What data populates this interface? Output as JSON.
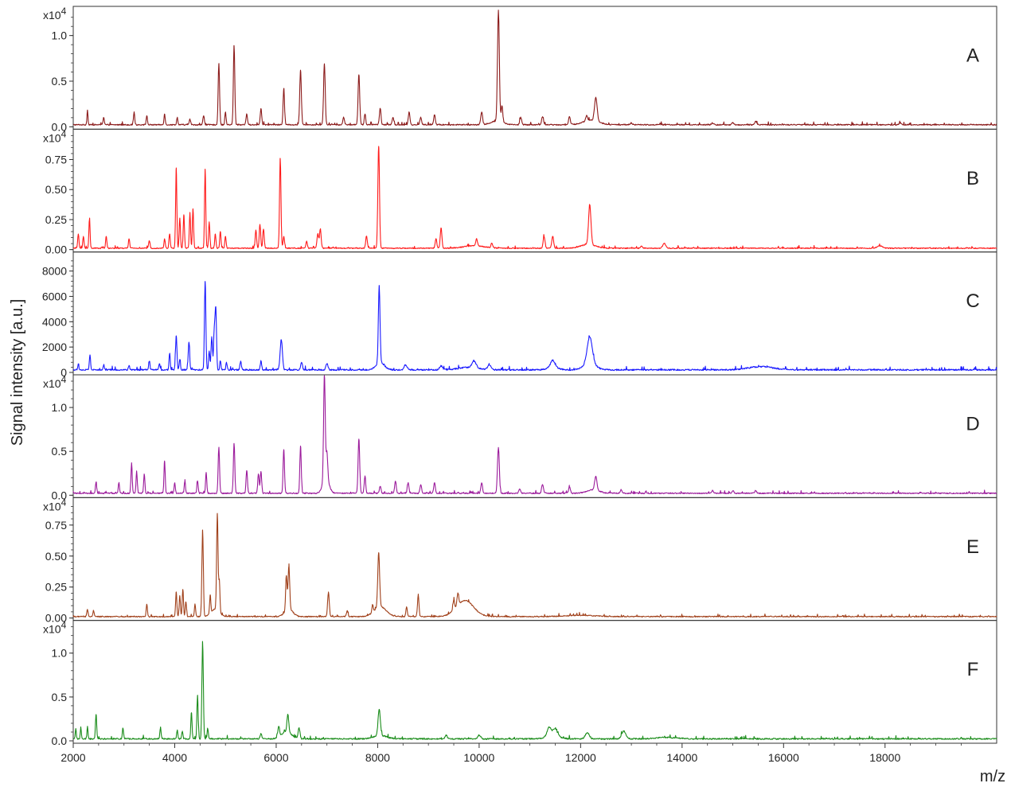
{
  "chart_data": {
    "type": "line",
    "ylabel": "Signal intensity [a.u.]",
    "xlabel": "m/z",
    "xlim": [
      2000,
      20200
    ],
    "x_ticks": [
      2000,
      4000,
      6000,
      8000,
      10000,
      12000,
      14000,
      16000,
      18000
    ],
    "x_tick_labels": [
      "2000",
      "4000",
      "6000",
      "8000",
      "10000",
      "12000",
      "14000",
      "16000",
      "18000"
    ],
    "grid": false,
    "panels": [
      {
        "label": "A",
        "color": "#8b1a1a",
        "exponent_label": "x10",
        "exponent_sup": "4",
        "ylim": [
          0,
          1.25
        ],
        "y_ticks": [
          0,
          0.5,
          1.0
        ],
        "y_tick_labels": [
          "0.0",
          "0.5",
          "1.0"
        ],
        "baseline": 0.02,
        "noise": 0.012,
        "peaks": [
          [
            2280,
            0.16,
            10
          ],
          [
            2600,
            0.08,
            12
          ],
          [
            3200,
            0.14,
            12
          ],
          [
            3450,
            0.1,
            12
          ],
          [
            3800,
            0.12,
            12
          ],
          [
            4050,
            0.08,
            12
          ],
          [
            4300,
            0.06,
            14
          ],
          [
            4570,
            0.1,
            14
          ],
          [
            4870,
            0.67,
            14
          ],
          [
            5000,
            0.14,
            12
          ],
          [
            5170,
            0.87,
            14
          ],
          [
            5420,
            0.12,
            14
          ],
          [
            5700,
            0.18,
            14
          ],
          [
            6150,
            0.4,
            14
          ],
          [
            6480,
            0.6,
            16
          ],
          [
            6950,
            0.67,
            16
          ],
          [
            7330,
            0.08,
            16
          ],
          [
            7630,
            0.55,
            16
          ],
          [
            7750,
            0.12,
            14
          ],
          [
            8050,
            0.18,
            16
          ],
          [
            8300,
            0.08,
            16
          ],
          [
            8620,
            0.14,
            16
          ],
          [
            8850,
            0.08,
            16
          ],
          [
            9120,
            0.11,
            16
          ],
          [
            10050,
            0.14,
            18
          ],
          [
            10380,
            1.22,
            18
          ],
          [
            10450,
            0.18,
            16
          ],
          [
            10820,
            0.08,
            18
          ],
          [
            11250,
            0.09,
            18
          ],
          [
            11780,
            0.09,
            18
          ],
          [
            12120,
            0.06,
            18
          ],
          [
            12300,
            0.26,
            26
          ],
          [
            13000,
            0.02,
            20
          ],
          [
            14600,
            0.02,
            20
          ],
          [
            15000,
            0.02,
            20
          ],
          [
            15450,
            0.04,
            20
          ],
          [
            18300,
            0.02,
            20
          ]
        ],
        "humps": [
          [
            12200,
            0.05,
            150
          ],
          [
            10350,
            0.04,
            120
          ]
        ]
      },
      {
        "label": "B",
        "color": "#ff1a1a",
        "exponent_label": "x10",
        "exponent_sup": "4",
        "ylim": [
          0,
          0.95
        ],
        "y_ticks": [
          0,
          0.25,
          0.5,
          0.75
        ],
        "y_tick_labels": [
          "0.00",
          "0.25",
          "0.50",
          "0.75"
        ],
        "baseline": 0.01,
        "noise": 0.008,
        "peaks": [
          [
            2100,
            0.12,
            12
          ],
          [
            2200,
            0.1,
            12
          ],
          [
            2320,
            0.24,
            12
          ],
          [
            2650,
            0.1,
            12
          ],
          [
            3100,
            0.08,
            12
          ],
          [
            3500,
            0.06,
            14
          ],
          [
            3800,
            0.08,
            12
          ],
          [
            3900,
            0.12,
            12
          ],
          [
            4030,
            0.67,
            12
          ],
          [
            4100,
            0.25,
            12
          ],
          [
            4180,
            0.28,
            12
          ],
          [
            4300,
            0.3,
            12
          ],
          [
            4360,
            0.33,
            12
          ],
          [
            4600,
            0.66,
            12
          ],
          [
            4680,
            0.22,
            12
          ],
          [
            4800,
            0.12,
            12
          ],
          [
            4900,
            0.14,
            12
          ],
          [
            5000,
            0.1,
            12
          ],
          [
            5600,
            0.15,
            14
          ],
          [
            5680,
            0.2,
            14
          ],
          [
            5750,
            0.16,
            14
          ],
          [
            6080,
            0.75,
            14
          ],
          [
            6150,
            0.1,
            14
          ],
          [
            6600,
            0.06,
            14
          ],
          [
            6820,
            0.12,
            16
          ],
          [
            6870,
            0.16,
            16
          ],
          [
            7780,
            0.1,
            16
          ],
          [
            8020,
            0.85,
            16
          ],
          [
            9150,
            0.08,
            16
          ],
          [
            9250,
            0.17,
            16
          ],
          [
            9950,
            0.06,
            16
          ],
          [
            10250,
            0.04,
            16
          ],
          [
            11280,
            0.1,
            18
          ],
          [
            11450,
            0.1,
            18
          ],
          [
            12180,
            0.33,
            24
          ],
          [
            13200,
            0.02,
            20
          ],
          [
            13650,
            0.04,
            30
          ],
          [
            17900,
            0.02,
            50
          ]
        ],
        "humps": [
          [
            12150,
            0.03,
            150
          ],
          [
            9900,
            0.02,
            200
          ]
        ]
      },
      {
        "label": "C",
        "color": "#1a1aff",
        "exponent_label": "",
        "exponent_sup": "",
        "ylim": [
          0,
          9000
        ],
        "y_ticks": [
          0,
          2000,
          4000,
          6000,
          8000
        ],
        "y_tick_labels": [
          "0",
          "2000",
          "4000",
          "6000",
          "8000"
        ],
        "baseline": 180,
        "noise": 110,
        "peaks": [
          [
            2100,
            500,
            10
          ],
          [
            2330,
            1200,
            12
          ],
          [
            2600,
            400,
            12
          ],
          [
            3100,
            350,
            12
          ],
          [
            3500,
            700,
            12
          ],
          [
            3700,
            500,
            12
          ],
          [
            3900,
            1300,
            12
          ],
          [
            4030,
            2700,
            14
          ],
          [
            4100,
            800,
            12
          ],
          [
            4280,
            2200,
            14
          ],
          [
            4600,
            7000,
            14
          ],
          [
            4680,
            1500,
            12
          ],
          [
            4730,
            2600,
            14
          ],
          [
            4780,
            3000,
            14
          ],
          [
            4810,
            4700,
            14
          ],
          [
            4900,
            700,
            12
          ],
          [
            5020,
            600,
            12
          ],
          [
            5300,
            700,
            14
          ],
          [
            5700,
            700,
            14
          ],
          [
            6100,
            2400,
            22
          ],
          [
            6500,
            600,
            18
          ],
          [
            7000,
            500,
            20
          ],
          [
            8030,
            6100,
            16
          ],
          [
            8550,
            400,
            30
          ],
          [
            9250,
            300,
            30
          ],
          [
            9900,
            500,
            40
          ],
          [
            10200,
            400,
            30
          ],
          [
            11450,
            500,
            40
          ],
          [
            12180,
            2100,
            50
          ]
        ],
        "humps": [
          [
            8050,
            600,
            80
          ],
          [
            12180,
            500,
            120
          ],
          [
            11450,
            250,
            100
          ],
          [
            15550,
            250,
            250
          ],
          [
            9800,
            200,
            200
          ]
        ]
      },
      {
        "label": "D",
        "color": "#9b1a9b",
        "exponent_label": "x10",
        "exponent_sup": "4",
        "ylim": [
          0,
          1.3
        ],
        "y_ticks": [
          0,
          0.5,
          1.0
        ],
        "y_tick_labels": [
          "0.0",
          "0.5",
          "1.0"
        ],
        "baseline": 0.02,
        "noise": 0.012,
        "peaks": [
          [
            2450,
            0.13,
            12
          ],
          [
            2900,
            0.12,
            12
          ],
          [
            3150,
            0.35,
            12
          ],
          [
            3250,
            0.25,
            12
          ],
          [
            3400,
            0.22,
            12
          ],
          [
            3800,
            0.37,
            12
          ],
          [
            4000,
            0.12,
            12
          ],
          [
            4200,
            0.14,
            12
          ],
          [
            4450,
            0.14,
            12
          ],
          [
            4620,
            0.24,
            12
          ],
          [
            4870,
            0.52,
            14
          ],
          [
            5170,
            0.57,
            14
          ],
          [
            5420,
            0.26,
            14
          ],
          [
            5650,
            0.22,
            14
          ],
          [
            5700,
            0.25,
            14
          ],
          [
            6150,
            0.5,
            14
          ],
          [
            6480,
            0.54,
            14
          ],
          [
            6950,
            1.2,
            16
          ],
          [
            7000,
            0.3,
            16
          ],
          [
            7630,
            0.62,
            16
          ],
          [
            7750,
            0.2,
            14
          ],
          [
            8050,
            0.08,
            16
          ],
          [
            8350,
            0.14,
            16
          ],
          [
            8600,
            0.12,
            16
          ],
          [
            8850,
            0.1,
            16
          ],
          [
            9120,
            0.12,
            16
          ],
          [
            10050,
            0.12,
            16
          ],
          [
            10380,
            0.52,
            18
          ],
          [
            10800,
            0.05,
            16
          ],
          [
            11250,
            0.1,
            18
          ],
          [
            11780,
            0.07,
            18
          ],
          [
            12300,
            0.16,
            22
          ],
          [
            12800,
            0.04,
            18
          ],
          [
            14600,
            0.03,
            18
          ],
          [
            15000,
            0.03,
            18
          ],
          [
            15450,
            0.03,
            18
          ]
        ],
        "humps": [
          [
            6980,
            0.18,
            60
          ],
          [
            12250,
            0.04,
            120
          ]
        ]
      },
      {
        "label": "E",
        "color": "#a0401a",
        "exponent_label": "x10",
        "exponent_sup": "4",
        "ylim": [
          0,
          0.92
        ],
        "y_ticks": [
          0,
          0.25,
          0.5,
          0.75
        ],
        "y_tick_labels": [
          "0.00",
          "0.25",
          "0.50",
          "0.75"
        ],
        "baseline": 0.01,
        "noise": 0.008,
        "peaks": [
          [
            2280,
            0.06,
            12
          ],
          [
            2400,
            0.05,
            12
          ],
          [
            3450,
            0.1,
            12
          ],
          [
            4030,
            0.2,
            12
          ],
          [
            4100,
            0.17,
            12
          ],
          [
            4160,
            0.22,
            12
          ],
          [
            4220,
            0.12,
            12
          ],
          [
            4400,
            0.1,
            12
          ],
          [
            4550,
            0.7,
            14
          ],
          [
            4700,
            0.15,
            12
          ],
          [
            4840,
            0.78,
            14
          ],
          [
            4880,
            0.25,
            12
          ],
          [
            6200,
            0.28,
            14
          ],
          [
            6250,
            0.35,
            16
          ],
          [
            7030,
            0.2,
            16
          ],
          [
            7400,
            0.05,
            14
          ],
          [
            7900,
            0.06,
            14
          ],
          [
            8020,
            0.44,
            18
          ],
          [
            8570,
            0.08,
            14
          ],
          [
            8800,
            0.18,
            14
          ],
          [
            9500,
            0.08,
            16
          ],
          [
            9580,
            0.1,
            16
          ]
        ],
        "humps": [
          [
            4800,
            0.06,
            80
          ],
          [
            6250,
            0.06,
            80
          ],
          [
            8050,
            0.08,
            120
          ],
          [
            9720,
            0.13,
            170
          ],
          [
            12000,
            0.01,
            300
          ]
        ]
      },
      {
        "label": "F",
        "color": "#1a8c1a",
        "exponent_label": "x10",
        "exponent_sup": "4",
        "ylim": [
          0,
          1.3
        ],
        "y_ticks": [
          0,
          0.5,
          1.0
        ],
        "y_tick_labels": [
          "0.0",
          "0.5",
          "1.0"
        ],
        "baseline": 0.02,
        "noise": 0.015,
        "peaks": [
          [
            2050,
            0.12,
            10
          ],
          [
            2150,
            0.13,
            10
          ],
          [
            2280,
            0.14,
            10
          ],
          [
            2450,
            0.28,
            12
          ],
          [
            2980,
            0.12,
            12
          ],
          [
            3720,
            0.13,
            12
          ],
          [
            4050,
            0.1,
            12
          ],
          [
            4150,
            0.08,
            12
          ],
          [
            4330,
            0.3,
            12
          ],
          [
            4450,
            0.5,
            12
          ],
          [
            4550,
            1.1,
            14
          ],
          [
            4650,
            0.12,
            12
          ],
          [
            5700,
            0.06,
            16
          ],
          [
            6050,
            0.12,
            16
          ],
          [
            6230,
            0.2,
            18
          ],
          [
            6450,
            0.12,
            18
          ],
          [
            8030,
            0.3,
            22
          ],
          [
            9350,
            0.04,
            20
          ],
          [
            10000,
            0.04,
            30
          ],
          [
            11380,
            0.1,
            40
          ],
          [
            11500,
            0.08,
            40
          ],
          [
            12130,
            0.07,
            40
          ],
          [
            12850,
            0.09,
            40
          ]
        ],
        "humps": [
          [
            6200,
            0.08,
            100
          ],
          [
            8050,
            0.04,
            120
          ],
          [
            11450,
            0.04,
            120
          ],
          [
            13700,
            0.015,
            200
          ]
        ]
      }
    ]
  }
}
